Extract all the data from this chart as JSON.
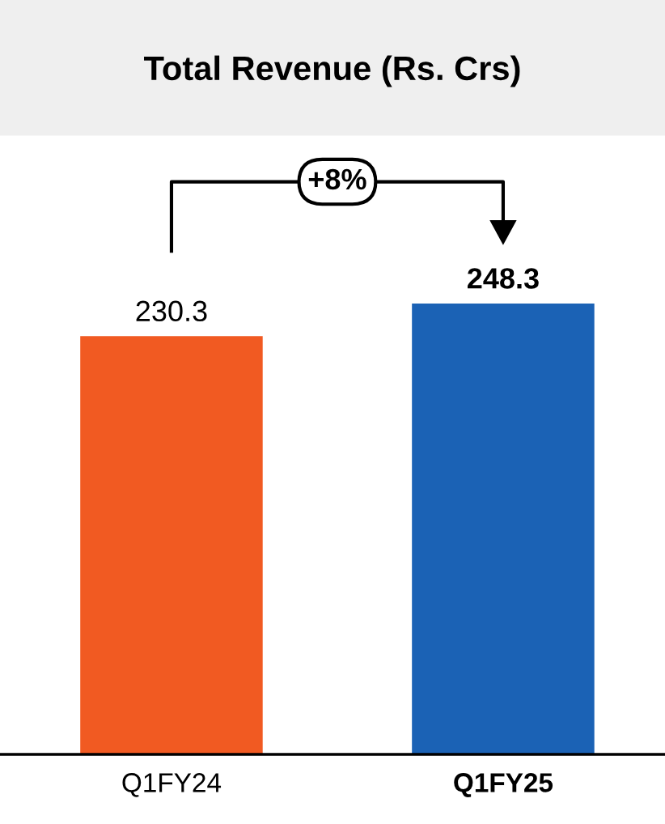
{
  "chart_data": {
    "type": "bar",
    "title": "Total Revenue (Rs. Crs)",
    "categories": [
      "Q1FY24",
      "Q1FY25"
    ],
    "values": [
      230.3,
      248.3
    ],
    "colors": [
      "#f15a22",
      "#1b62b5"
    ],
    "data_labels": true,
    "annotations": [
      "+8%"
    ],
    "grid": false,
    "legend": false
  }
}
